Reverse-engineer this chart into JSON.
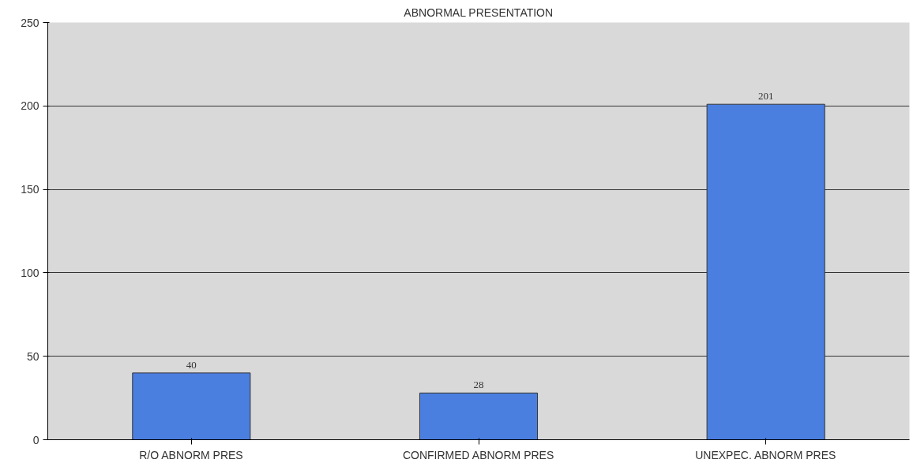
{
  "chart_data": {
    "type": "bar",
    "title": "ABNORMAL PRESENTATION",
    "categories": [
      "R/O ABNORM PRES",
      "CONFIRMED ABNORM PRES",
      "UNEXPEC. ABNORM PRES"
    ],
    "values": [
      40,
      28,
      201
    ],
    "color": "#4a7fe0",
    "ylim": [
      0,
      250
    ],
    "yticks": [
      0,
      50,
      100,
      150,
      200,
      250
    ],
    "grid": "y",
    "data_labels": true
  }
}
